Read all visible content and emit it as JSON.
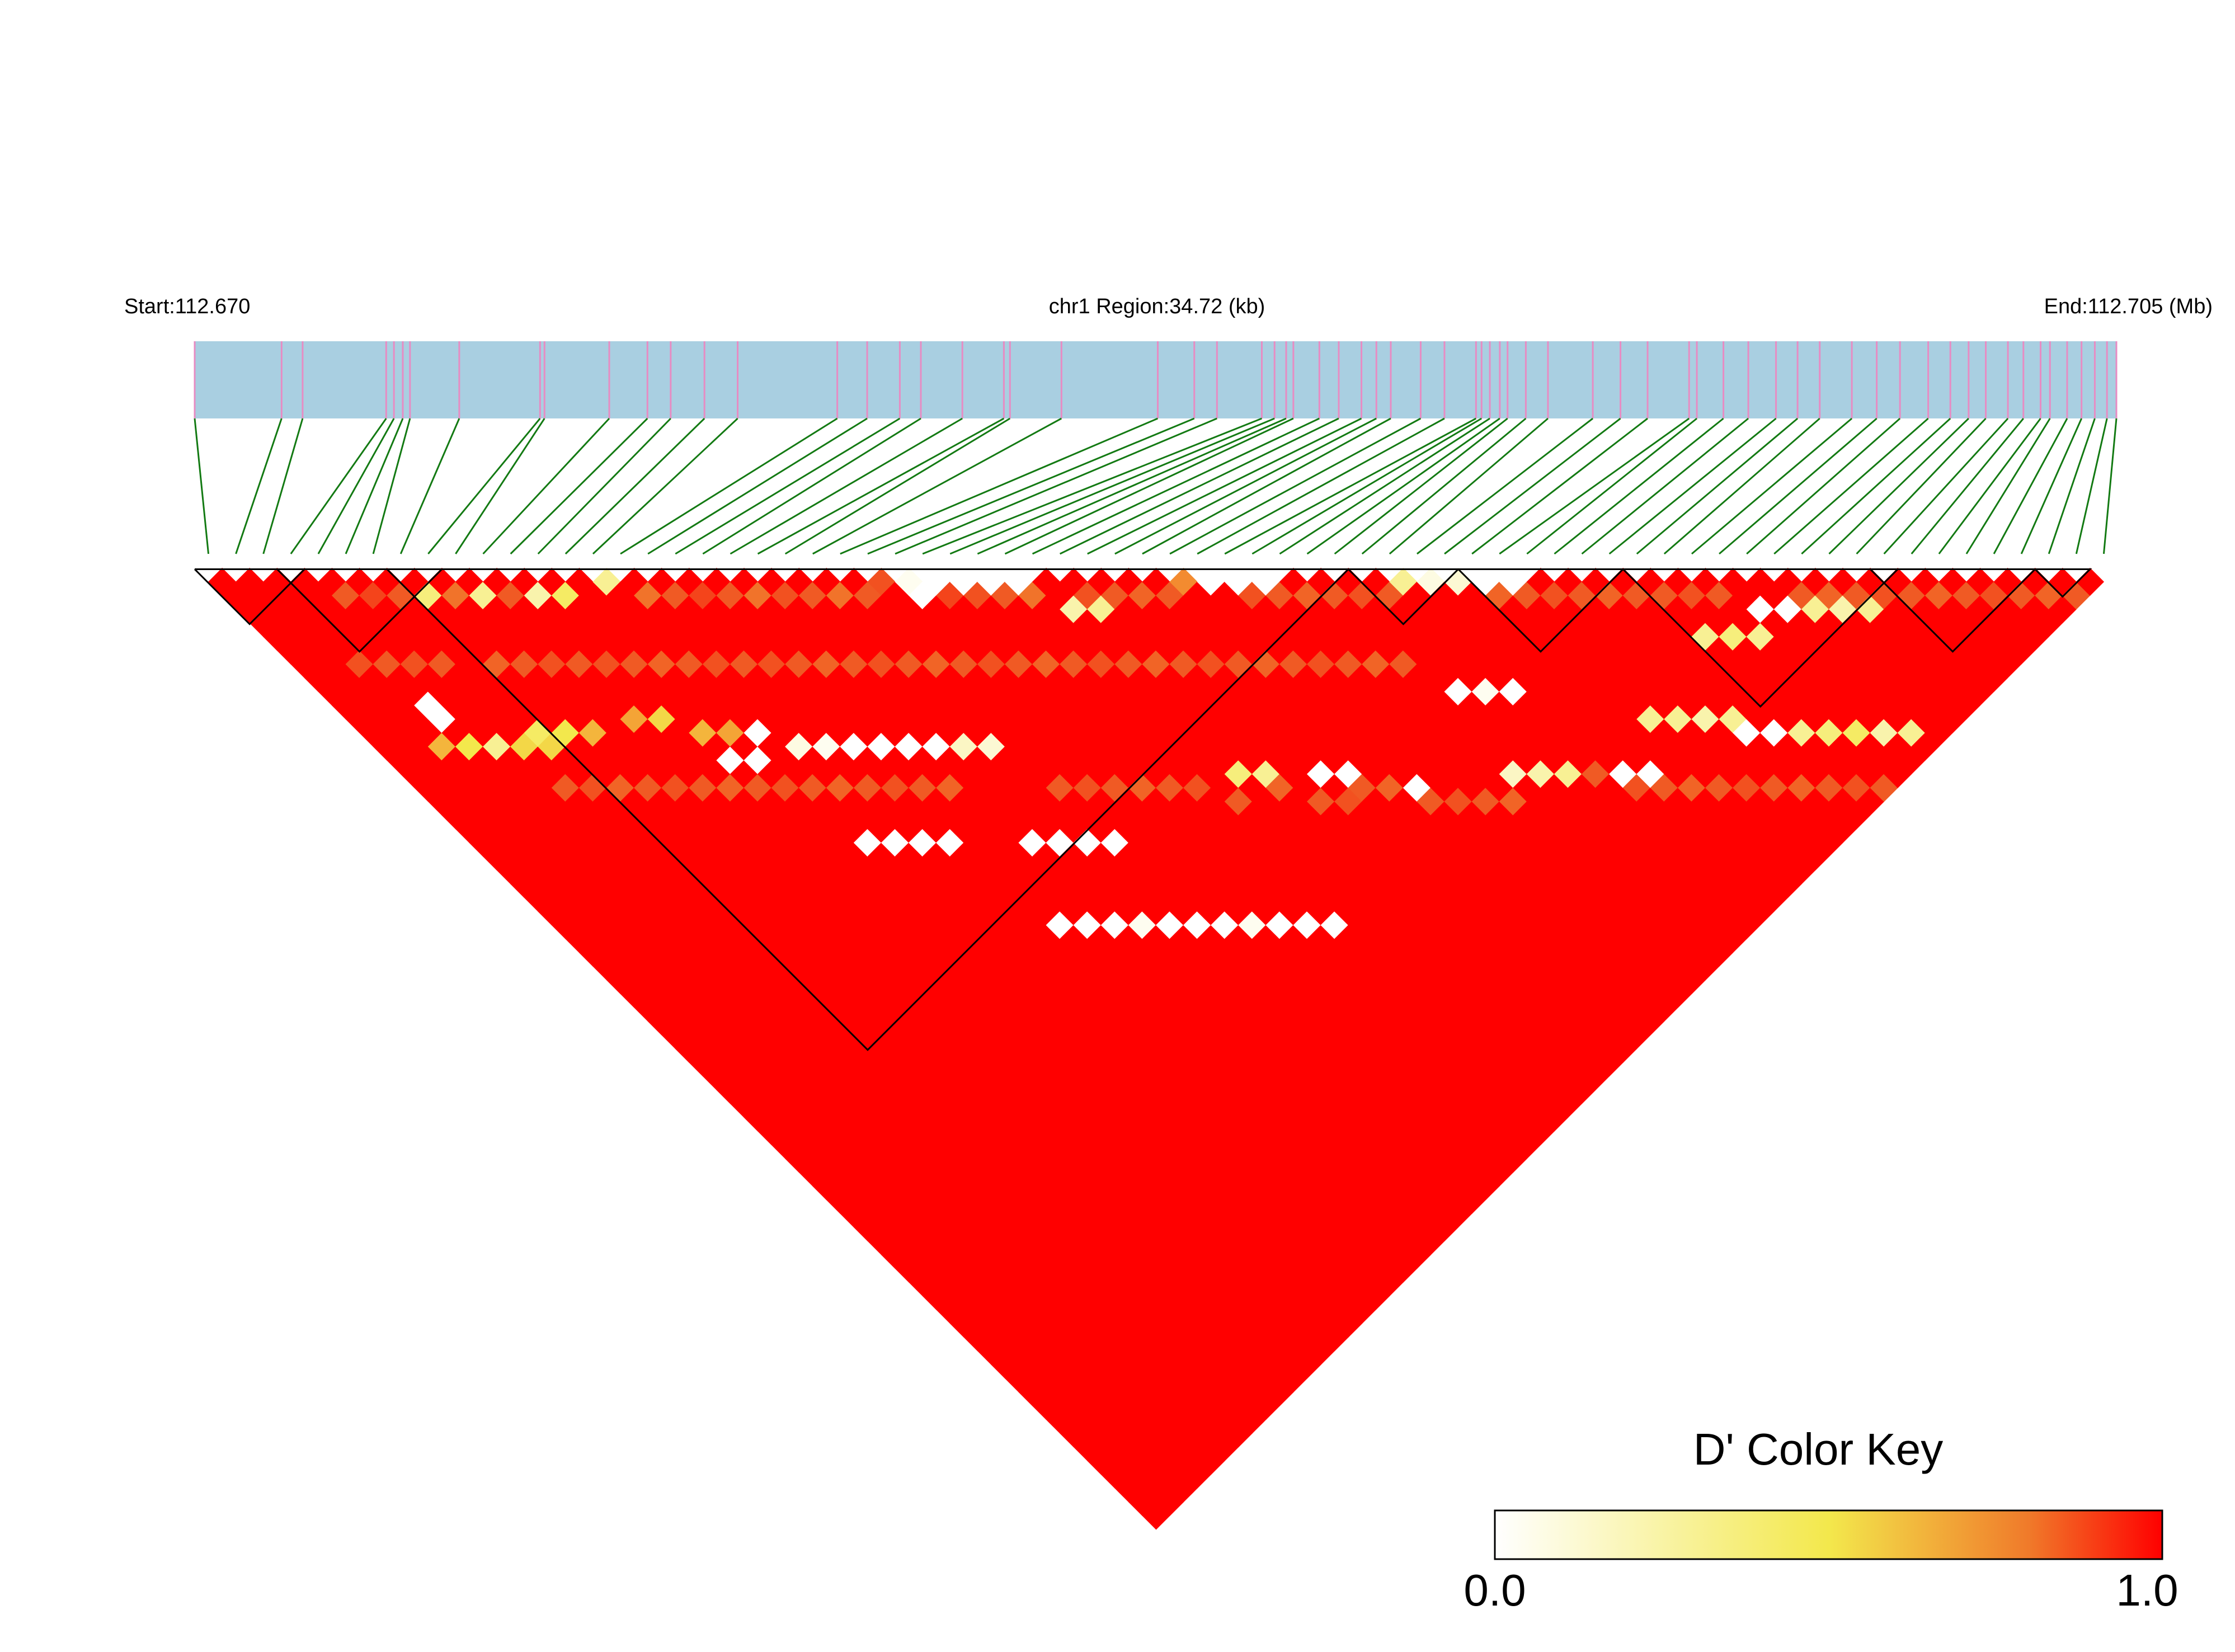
{
  "chart_data": {
    "type": "heatmap",
    "subtype": "linkage-disequilibrium",
    "header": {
      "start_label": "Start:112.670",
      "region_label": "chr1 Region:34.72 (kb)",
      "end_label": "End:112.705 (Mb)"
    },
    "region": {
      "chromosome": "chr1",
      "start_mb": 112.67,
      "end_mb": 112.705,
      "length_kb": 34.72
    },
    "snp_count": 70,
    "snp_positions_kb": [
      0.0,
      1.57,
      1.95,
      3.46,
      3.6,
      3.76,
      3.89,
      4.78,
      6.24,
      6.32,
      7.49,
      8.18,
      8.6,
      9.21,
      9.81,
      11.61,
      12.15,
      12.74,
      13.12,
      13.87,
      14.62,
      14.73,
      15.66,
      17.4,
      18.06,
      18.47,
      19.28,
      19.51,
      19.72,
      19.85,
      20.32,
      20.67,
      21.08,
      21.35,
      21.61,
      22.15,
      22.58,
      23.15,
      23.25,
      23.4,
      23.58,
      23.72,
      24.05,
      24.45,
      25.26,
      25.76,
      26.25,
      27.0,
      27.14,
      27.62,
      28.07,
      28.57,
      28.96,
      29.36,
      29.94,
      30.39,
      30.81,
      31.32,
      31.72,
      32.05,
      32.36,
      32.76,
      33.04,
      33.35,
      33.52,
      33.83,
      34.09,
      34.33,
      34.55,
      34.72
    ],
    "value_name": "D'",
    "value_range": [
      0.0,
      1.0
    ],
    "default_value": 1.0,
    "cells": [
      [
        24,
        25,
        0.82
      ],
      [
        25,
        27,
        0.0
      ],
      [
        25,
        26,
        0.05
      ],
      [
        26,
        27,
        0.0
      ],
      [
        27,
        28,
        0.0
      ],
      [
        28,
        29,
        0.0
      ],
      [
        29,
        30,
        0.0
      ],
      [
        35,
        36,
        0.7
      ],
      [
        36,
        37,
        0.0
      ],
      [
        37,
        38,
        0.0
      ],
      [
        38,
        39,
        0.0
      ],
      [
        3,
        13,
        0.0
      ],
      [
        3,
        14,
        0.0
      ],
      [
        2,
        15,
        0.6
      ],
      [
        3,
        16,
        0.45
      ],
      [
        4,
        17,
        0.3
      ],
      [
        5,
        18,
        0.5
      ],
      [
        6,
        18,
        0.4
      ],
      [
        6,
        19,
        0.5
      ],
      [
        7,
        19,
        0.45
      ],
      [
        8,
        20,
        0.6
      ],
      [
        10,
        21,
        0.65
      ],
      [
        11,
        22,
        0.5
      ],
      [
        12,
        24,
        0.6
      ],
      [
        13,
        25,
        0.65
      ],
      [
        12,
        26,
        0.0
      ],
      [
        13,
        27,
        0.0
      ],
      [
        14,
        26,
        0.0
      ],
      [
        15,
        28,
        0.1
      ],
      [
        16,
        29,
        0.05
      ],
      [
        17,
        30,
        0.0
      ],
      [
        18,
        31,
        0.0
      ],
      [
        19,
        32,
        0.0
      ],
      [
        20,
        33,
        0.0
      ],
      [
        21,
        34,
        0.2
      ],
      [
        22,
        35,
        0.15
      ],
      [
        14,
        34,
        0.0
      ],
      [
        15,
        35,
        0.0
      ],
      [
        16,
        36,
        0.0
      ],
      [
        17,
        37,
        0.0
      ],
      [
        20,
        40,
        0.0
      ],
      [
        21,
        41,
        0.0
      ],
      [
        22,
        42,
        0.0
      ],
      [
        23,
        43,
        0.0
      ],
      [
        18,
        44,
        0.0
      ],
      [
        19,
        45,
        0.0
      ],
      [
        20,
        46,
        0.0
      ],
      [
        21,
        47,
        0.05
      ],
      [
        22,
        48,
        0.0
      ],
      [
        23,
        49,
        0.0
      ],
      [
        24,
        50,
        0.0
      ],
      [
        25,
        51,
        0.05
      ],
      [
        26,
        52,
        0.0
      ],
      [
        27,
        53,
        0.0
      ],
      [
        28,
        54,
        0.0
      ],
      [
        30,
        45,
        0.35
      ],
      [
        31,
        46,
        0.3
      ],
      [
        33,
        48,
        0.0
      ],
      [
        34,
        49,
        0.0
      ],
      [
        36,
        52,
        0.0
      ],
      [
        40,
        55,
        0.2
      ],
      [
        41,
        56,
        0.25
      ],
      [
        42,
        57,
        0.3
      ],
      [
        44,
        59,
        0.0
      ],
      [
        45,
        60,
        0.0
      ],
      [
        50,
        62,
        0.0
      ],
      [
        51,
        63,
        0.0
      ],
      [
        52,
        64,
        0.3
      ],
      [
        53,
        65,
        0.35
      ],
      [
        54,
        66,
        0.4
      ],
      [
        55,
        67,
        0.25
      ],
      [
        56,
        68,
        0.3
      ],
      [
        41,
        50,
        0.0
      ],
      [
        42,
        51,
        0.05
      ],
      [
        43,
        52,
        0.0
      ],
      [
        44,
        45,
        0.1
      ],
      [
        45,
        46,
        0.15
      ],
      [
        46,
        47,
        0.0
      ],
      [
        47,
        48,
        0.0
      ],
      [
        43,
        44,
        0.3
      ],
      [
        55,
        58,
        0.0
      ],
      [
        56,
        59,
        0.0
      ],
      [
        57,
        60,
        0.3
      ],
      [
        58,
        61,
        0.25
      ],
      [
        59,
        62,
        0.3
      ],
      [
        47,
        58,
        0.3
      ],
      [
        48,
        59,
        0.3
      ],
      [
        49,
        60,
        0.25
      ],
      [
        50,
        61,
        0.3
      ],
      [
        52,
        57,
        0.3
      ],
      [
        53,
        58,
        0.35
      ],
      [
        54,
        59,
        0.3
      ],
      [
        30,
        33,
        0.25
      ],
      [
        31,
        34,
        0.3
      ],
      [
        7,
        9,
        0.35
      ],
      [
        9,
        11,
        0.3
      ],
      [
        11,
        13,
        0.25
      ],
      [
        12,
        14,
        0.4
      ],
      [
        14,
        15,
        0.3
      ],
      [
        4,
        6,
        0.8
      ],
      [
        5,
        7,
        0.85
      ],
      [
        6,
        8,
        0.8
      ],
      [
        8,
        10,
        0.75
      ],
      [
        10,
        12,
        0.8
      ],
      [
        15,
        17,
        0.75
      ],
      [
        16,
        18,
        0.8
      ],
      [
        17,
        19,
        0.85
      ],
      [
        18,
        20,
        0.8
      ],
      [
        19,
        21,
        0.75
      ],
      [
        20,
        22,
        0.82
      ],
      [
        21,
        23,
        0.8
      ],
      [
        22,
        24,
        0.75
      ],
      [
        23,
        25,
        0.8
      ],
      [
        26,
        28,
        0.85
      ],
      [
        27,
        29,
        0.82
      ],
      [
        28,
        30,
        0.8
      ],
      [
        29,
        31,
        0.75
      ],
      [
        31,
        33,
        0.82
      ],
      [
        32,
        34,
        0.8
      ],
      [
        33,
        35,
        0.78
      ],
      [
        34,
        36,
        0.8
      ],
      [
        37,
        39,
        0.82
      ],
      [
        38,
        40,
        0.8
      ],
      [
        39,
        41,
        0.78
      ],
      [
        40,
        42,
        0.8
      ],
      [
        41,
        43,
        0.82
      ],
      [
        42,
        44,
        0.8
      ],
      [
        46,
        48,
        0.78
      ],
      [
        47,
        49,
        0.8
      ],
      [
        48,
        50,
        0.82
      ],
      [
        49,
        51,
        0.8
      ],
      [
        50,
        52,
        0.78
      ],
      [
        51,
        53,
        0.8
      ],
      [
        52,
        54,
        0.8
      ],
      [
        53,
        55,
        0.82
      ],
      [
        54,
        56,
        0.8
      ],
      [
        57,
        59,
        0.8
      ],
      [
        58,
        60,
        0.78
      ],
      [
        59,
        61,
        0.8
      ],
      [
        60,
        62,
        0.82
      ],
      [
        61,
        63,
        0.8
      ],
      [
        62,
        64,
        0.78
      ],
      [
        63,
        65,
        0.8
      ],
      [
        64,
        66,
        0.82
      ],
      [
        65,
        67,
        0.8
      ],
      [
        66,
        68,
        0.78
      ],
      [
        67,
        69,
        0.8
      ],
      [
        2,
        9,
        0.82
      ],
      [
        3,
        10,
        0.8
      ],
      [
        4,
        11,
        0.82
      ],
      [
        5,
        12,
        0.8
      ],
      [
        7,
        14,
        0.78
      ],
      [
        8,
        15,
        0.8
      ],
      [
        9,
        16,
        0.82
      ],
      [
        10,
        17,
        0.8
      ],
      [
        11,
        18,
        0.82
      ],
      [
        12,
        19,
        0.8
      ],
      [
        13,
        20,
        0.78
      ],
      [
        14,
        21,
        0.8
      ],
      [
        15,
        22,
        0.82
      ],
      [
        16,
        23,
        0.8
      ],
      [
        17,
        24,
        0.82
      ],
      [
        18,
        25,
        0.8
      ],
      [
        19,
        26,
        0.78
      ],
      [
        20,
        27,
        0.8
      ],
      [
        21,
        28,
        0.82
      ],
      [
        22,
        29,
        0.8
      ],
      [
        23,
        30,
        0.78
      ],
      [
        24,
        31,
        0.8
      ],
      [
        25,
        32,
        0.82
      ],
      [
        26,
        33,
        0.8
      ],
      [
        27,
        34,
        0.78
      ],
      [
        28,
        35,
        0.8
      ],
      [
        29,
        36,
        0.82
      ],
      [
        30,
        37,
        0.8
      ],
      [
        31,
        38,
        0.78
      ],
      [
        32,
        39,
        0.8
      ],
      [
        33,
        40,
        0.82
      ],
      [
        34,
        41,
        0.8
      ],
      [
        35,
        42,
        0.78
      ],
      [
        36,
        43,
        0.8
      ],
      [
        37,
        44,
        0.82
      ],
      [
        38,
        45,
        0.8
      ],
      [
        39,
        46,
        0.78
      ],
      [
        40,
        47,
        0.8
      ],
      [
        5,
        21,
        0.8
      ],
      [
        6,
        22,
        0.82
      ],
      [
        7,
        23,
        0.78
      ],
      [
        8,
        24,
        0.8
      ],
      [
        9,
        25,
        0.82
      ],
      [
        10,
        26,
        0.8
      ],
      [
        11,
        27,
        0.78
      ],
      [
        12,
        28,
        0.8
      ],
      [
        13,
        29,
        0.82
      ],
      [
        14,
        30,
        0.8
      ],
      [
        15,
        31,
        0.78
      ],
      [
        16,
        32,
        0.8
      ],
      [
        17,
        33,
        0.82
      ],
      [
        18,
        34,
        0.8
      ],
      [
        19,
        35,
        0.78
      ],
      [
        23,
        39,
        0.8
      ],
      [
        24,
        40,
        0.82
      ],
      [
        25,
        41,
        0.8
      ],
      [
        26,
        42,
        0.78
      ],
      [
        27,
        43,
        0.8
      ],
      [
        28,
        44,
        0.82
      ],
      [
        29,
        46,
        0.8
      ],
      [
        31,
        47,
        0.78
      ],
      [
        32,
        49,
        0.8
      ],
      [
        33,
        50,
        0.82
      ],
      [
        34,
        50,
        0.8
      ],
      [
        35,
        51,
        0.78
      ],
      [
        36,
        53,
        0.8
      ],
      [
        37,
        54,
        0.82
      ],
      [
        38,
        55,
        0.8
      ],
      [
        39,
        56,
        0.78
      ],
      [
        43,
        58,
        0.8
      ],
      [
        44,
        60,
        0.82
      ],
      [
        45,
        61,
        0.8
      ],
      [
        46,
        62,
        0.78
      ],
      [
        47,
        63,
        0.8
      ],
      [
        48,
        64,
        0.82
      ],
      [
        49,
        65,
        0.8
      ],
      [
        50,
        66,
        0.78
      ],
      [
        51,
        67,
        0.8
      ],
      [
        52,
        68,
        0.82
      ],
      [
        53,
        69,
        0.8
      ]
    ],
    "blocks": [
      {
        "from": 0,
        "to": 3
      },
      {
        "from": 3,
        "to": 8
      },
      {
        "from": 7,
        "to": 41
      },
      {
        "from": 42,
        "to": 45
      },
      {
        "from": 46,
        "to": 51
      },
      {
        "from": 52,
        "to": 61
      },
      {
        "from": 61,
        "to": 66
      },
      {
        "from": 67,
        "to": 68
      }
    ],
    "color_key": {
      "title": "D' Color Key",
      "min_label": "0.0",
      "max_label": "1.0",
      "stops": [
        "#ffffff",
        "#f3e84c",
        "#f07a2a",
        "#ff0000"
      ]
    },
    "colors": {
      "chromosome_bar": "#a9cfe1",
      "snp_tick": "#e78cc3",
      "connector": "#137a13",
      "ld_high": "#ff0000",
      "block_outline": "#000000"
    }
  }
}
